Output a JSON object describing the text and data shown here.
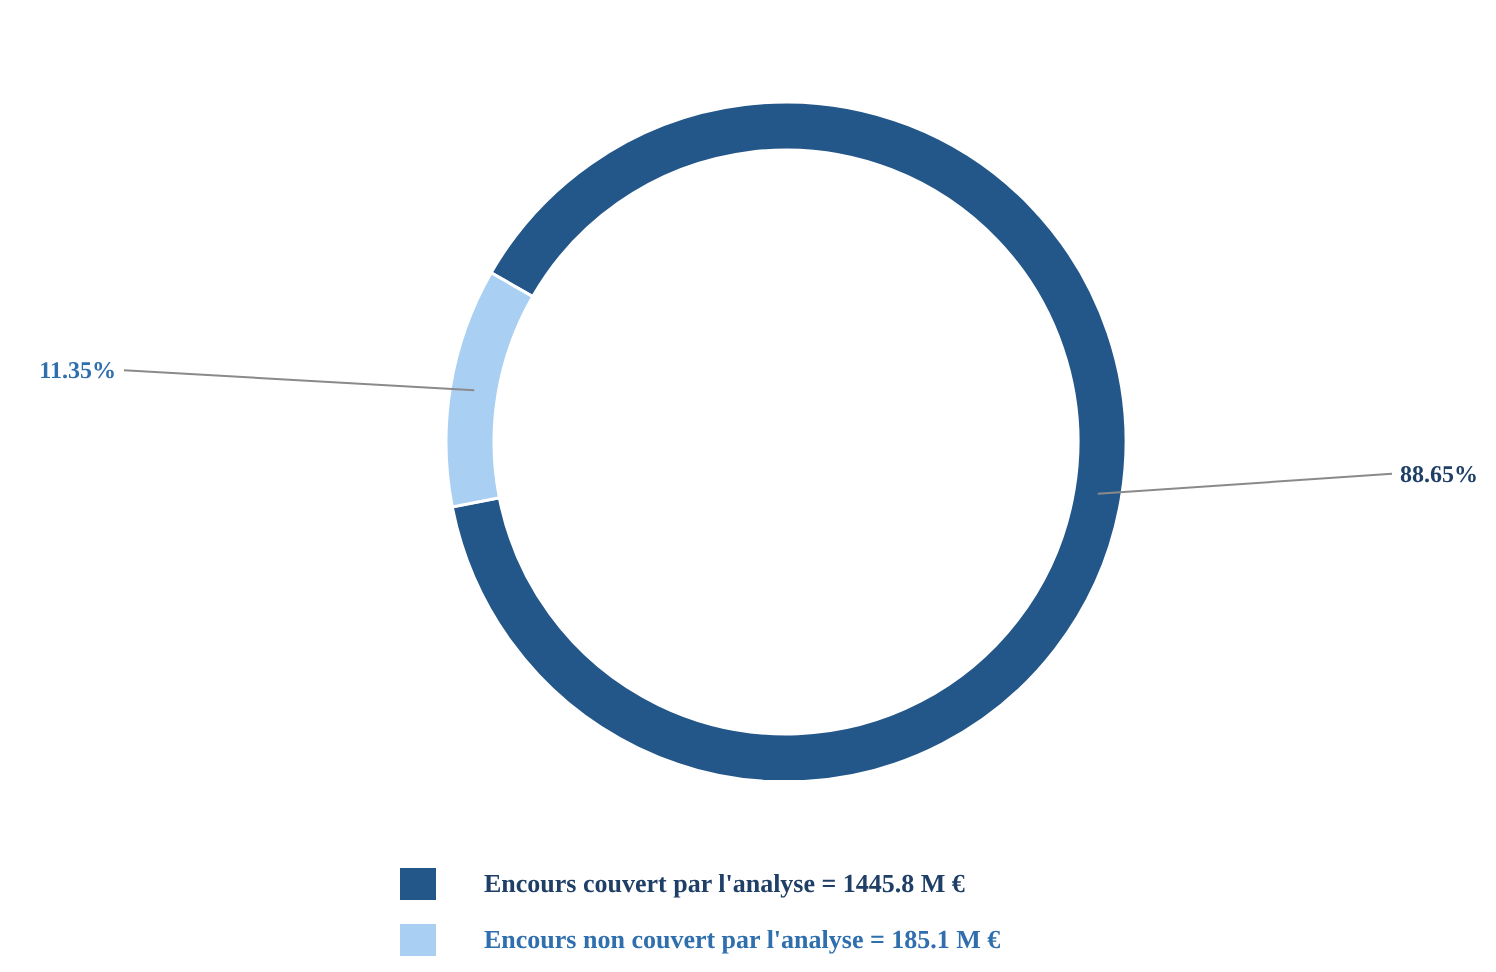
{
  "chart_data": {
    "type": "donut",
    "categories": [
      "Encours couvert par l'analyse = 1445.8 M €",
      "Encours non couvert par l'analyse = 185.1 M €"
    ],
    "values": [
      88.65,
      11.35
    ],
    "value_labels": [
      "88.65%",
      "11.35%"
    ],
    "colors": [
      "#245789",
      "#a9cff2"
    ],
    "legend": "bottom"
  }
}
